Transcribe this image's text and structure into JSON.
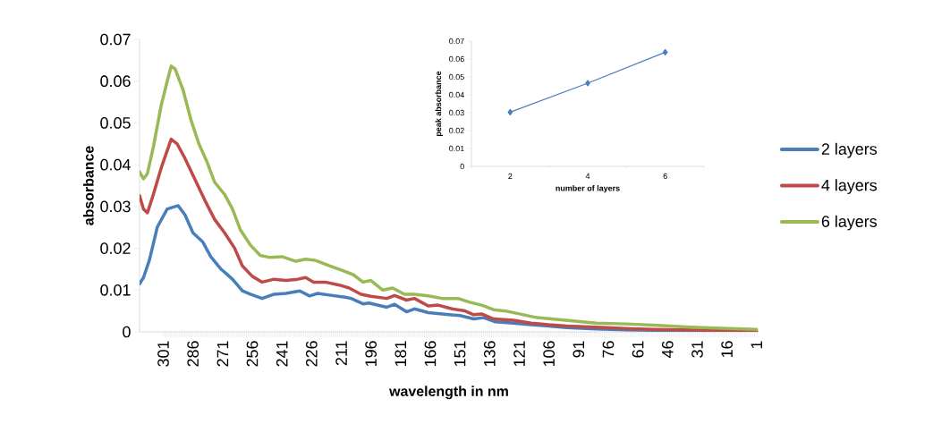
{
  "chart_data": [
    {
      "type": "line",
      "xlabel": "wavelength in nm",
      "ylabel": "absorbance",
      "xlim": [
        313,
        0
      ],
      "xticks": [
        301,
        286,
        271,
        256,
        241,
        226,
        211,
        196,
        181,
        166,
        151,
        136,
        121,
        106,
        91,
        76,
        61,
        46,
        31,
        16,
        1
      ],
      "ylim": [
        0,
        0.07
      ],
      "yticks": [
        0,
        0.01,
        0.02,
        0.03,
        0.04,
        0.05,
        0.06,
        0.07
      ],
      "legend": "right",
      "line_style": "solid",
      "series": [
        {
          "name": "2 layers",
          "color": "#4a7ebb",
          "x": [
            313,
            311,
            308,
            304,
            299,
            293.5,
            290,
            286,
            281,
            277,
            272,
            266,
            261,
            257,
            251,
            245,
            239,
            232,
            227,
            223,
            217,
            209,
            206,
            200,
            197,
            188,
            184,
            178,
            174,
            167,
            160,
            151,
            144,
            139,
            133,
            124,
            115,
            106,
            97,
            82,
            67,
            53,
            37,
            22
          ],
          "values": [
            0.0115,
            0.013,
            0.0172,
            0.0251,
            0.0294,
            0.0302,
            0.028,
            0.0237,
            0.0215,
            0.018,
            0.0151,
            0.0126,
            0.0098,
            0.009,
            0.008,
            0.009,
            0.0092,
            0.0098,
            0.0086,
            0.0092,
            0.0088,
            0.0083,
            0.008,
            0.0067,
            0.0069,
            0.0059,
            0.0066,
            0.0048,
            0.0055,
            0.0046,
            0.0043,
            0.0039,
            0.0031,
            0.0034,
            0.0024,
            0.0021,
            0.0017,
            0.0014,
            0.001,
            0.0007,
            0.0005,
            0.0004,
            0.0003,
            0.0002
          ]
        },
        {
          "name": "4 layers",
          "color": "#be4b48",
          "x": [
            313,
            311,
            309,
            306,
            302,
            297,
            294,
            290,
            285,
            280,
            275,
            270,
            265,
            261,
            256,
            251,
            245,
            239,
            233,
            229,
            225,
            219,
            212,
            207,
            201,
            196,
            188,
            184,
            178,
            174,
            167,
            162,
            155,
            149,
            144,
            140,
            134,
            124,
            115,
            106,
            97,
            82,
            67,
            53,
            37,
            22,
            1
          ],
          "values": [
            0.0326,
            0.0294,
            0.0285,
            0.0329,
            0.0393,
            0.0461,
            0.045,
            0.0415,
            0.0365,
            0.0315,
            0.0269,
            0.0237,
            0.0201,
            0.0158,
            0.0133,
            0.0119,
            0.0126,
            0.0123,
            0.0126,
            0.013,
            0.0119,
            0.0119,
            0.0112,
            0.0105,
            0.009,
            0.0085,
            0.008,
            0.0087,
            0.0076,
            0.008,
            0.0062,
            0.0064,
            0.0055,
            0.0051,
            0.0041,
            0.0043,
            0.0031,
            0.0028,
            0.0021,
            0.0017,
            0.0014,
            0.0011,
            0.0008,
            0.0006,
            0.0005,
            0.0004,
            0.0001
          ]
        },
        {
          "name": "6 layers",
          "color": "#98b954",
          "x": [
            313,
            311,
            309,
            306,
            302,
            299,
            297,
            295,
            291,
            287,
            283,
            279,
            275,
            270,
            266,
            262,
            257,
            252,
            247,
            241,
            234,
            229,
            224,
            217,
            211,
            205,
            200,
            196,
            190,
            185,
            179,
            174,
            167,
            160,
            152,
            146,
            140,
            134,
            128,
            121,
            112,
            103,
            94,
            82,
            67,
            53,
            37,
            22,
            1
          ],
          "values": [
            0.0383,
            0.0366,
            0.0379,
            0.0443,
            0.0543,
            0.06,
            0.0636,
            0.0629,
            0.0579,
            0.0507,
            0.045,
            0.0408,
            0.0358,
            0.0329,
            0.0294,
            0.0244,
            0.0208,
            0.0183,
            0.0178,
            0.018,
            0.0169,
            0.0174,
            0.0171,
            0.0158,
            0.0148,
            0.0137,
            0.0119,
            0.0123,
            0.01,
            0.0105,
            0.009,
            0.009,
            0.0086,
            0.008,
            0.008,
            0.0071,
            0.0064,
            0.0053,
            0.005,
            0.0043,
            0.0034,
            0.003,
            0.0026,
            0.0021,
            0.0019,
            0.0016,
            0.0012,
            0.0009,
            0.0006
          ]
        }
      ]
    },
    {
      "type": "line",
      "xlabel": "number of layers",
      "ylabel": "peak absorbance",
      "categories": [
        "2",
        "4",
        "6"
      ],
      "ylim": [
        0,
        0.07
      ],
      "yticks": [
        0,
        0.01,
        0.02,
        0.03,
        0.04,
        0.05,
        0.06,
        0.07
      ],
      "marker": "diamond",
      "line_style": "solid",
      "series": [
        {
          "color": "#4a7ebb",
          "values": [
            0.0303,
            0.0465,
            0.0638
          ]
        }
      ]
    }
  ]
}
